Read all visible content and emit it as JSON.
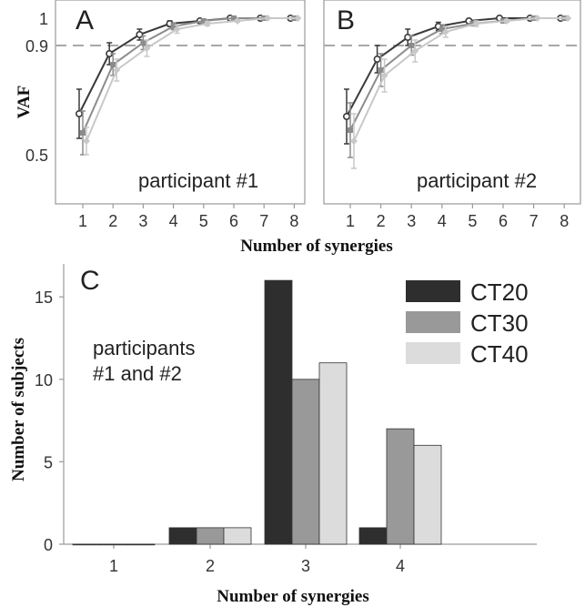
{
  "chart_data": [
    {
      "panel": "A",
      "type": "line",
      "annotation": "participant #1",
      "xlabel": "",
      "ylabel": "VAF",
      "x": [
        1,
        2,
        3,
        4,
        5,
        6,
        7,
        8
      ],
      "xticks": [
        "1",
        "2",
        "3",
        "4",
        "5",
        "6",
        "7",
        "8"
      ],
      "yticks": [
        {
          "value": 0.5,
          "label": "0.5"
        },
        {
          "value": 0.9,
          "label": "0.9"
        },
        {
          "value": 1.0,
          "label": "1"
        }
      ],
      "ylim": [
        0.42,
        1.0
      ],
      "reference_line": 0.9,
      "series": [
        {
          "color": "#3a3a3a",
          "values": [
            0.65,
            0.87,
            0.94,
            0.98,
            0.99,
            1.0,
            1.0,
            1.0
          ],
          "errors": [
            0.09,
            0.04,
            0.02,
            0.01,
            0.005,
            0.003,
            0.002,
            0.001
          ]
        },
        {
          "color": "#8c8c8c",
          "values": [
            0.58,
            0.83,
            0.91,
            0.97,
            0.99,
            1.0,
            1.0,
            1.0
          ],
          "errors": [
            0.08,
            0.04,
            0.025,
            0.012,
            0.006,
            0.003,
            0.002,
            0.001
          ]
        },
        {
          "color": "#c8c8c8",
          "values": [
            0.55,
            0.81,
            0.89,
            0.96,
            0.98,
            0.99,
            1.0,
            1.0
          ],
          "errors": [
            0.05,
            0.04,
            0.03,
            0.015,
            0.008,
            0.004,
            0.002,
            0.001
          ]
        }
      ]
    },
    {
      "panel": "B",
      "type": "line",
      "annotation": "participant #2",
      "xlabel": "",
      "ylabel": "",
      "x": [
        1,
        2,
        3,
        4,
        5,
        6,
        7,
        8
      ],
      "xticks": [
        "1",
        "2",
        "3",
        "4",
        "5",
        "6",
        "7",
        "8"
      ],
      "ylim": [
        0.42,
        1.0
      ],
      "reference_line": 0.9,
      "series": [
        {
          "color": "#3a3a3a",
          "values": [
            0.64,
            0.85,
            0.93,
            0.97,
            0.99,
            1.0,
            1.0,
            1.0
          ],
          "errors": [
            0.1,
            0.05,
            0.03,
            0.015,
            0.007,
            0.003,
            0.002,
            0.001
          ]
        },
        {
          "color": "#8c8c8c",
          "values": [
            0.59,
            0.81,
            0.9,
            0.96,
            0.98,
            0.99,
            1.0,
            1.0
          ],
          "errors": [
            0.1,
            0.06,
            0.035,
            0.016,
            0.008,
            0.004,
            0.002,
            0.001
          ]
        },
        {
          "color": "#c8c8c8",
          "values": [
            0.55,
            0.79,
            0.88,
            0.95,
            0.98,
            0.99,
            1.0,
            1.0
          ],
          "errors": [
            0.1,
            0.06,
            0.04,
            0.02,
            0.01,
            0.005,
            0.002,
            0.001
          ]
        }
      ]
    },
    {
      "panel": "C",
      "type": "bar",
      "annotation": [
        "participants",
        "#1 and #2"
      ],
      "xlabel": "Number of synergies",
      "ylabel": "Number of subjects",
      "categories": [
        "1",
        "2",
        "3",
        "4"
      ],
      "ylim": [
        0,
        17
      ],
      "yticks": [
        0,
        5,
        10,
        15
      ],
      "legend_position": "top-right",
      "series": [
        {
          "name": "CT20",
          "color": "#2e2e2e",
          "values": [
            0,
            1,
            16,
            1
          ]
        },
        {
          "name": "CT30",
          "color": "#999999",
          "values": [
            0,
            1,
            10,
            7
          ]
        },
        {
          "name": "CT40",
          "color": "#dcdcdc",
          "values": [
            0,
            1,
            11,
            6
          ]
        }
      ]
    }
  ],
  "shared": {
    "line_xlabel": "Number of synergies"
  }
}
